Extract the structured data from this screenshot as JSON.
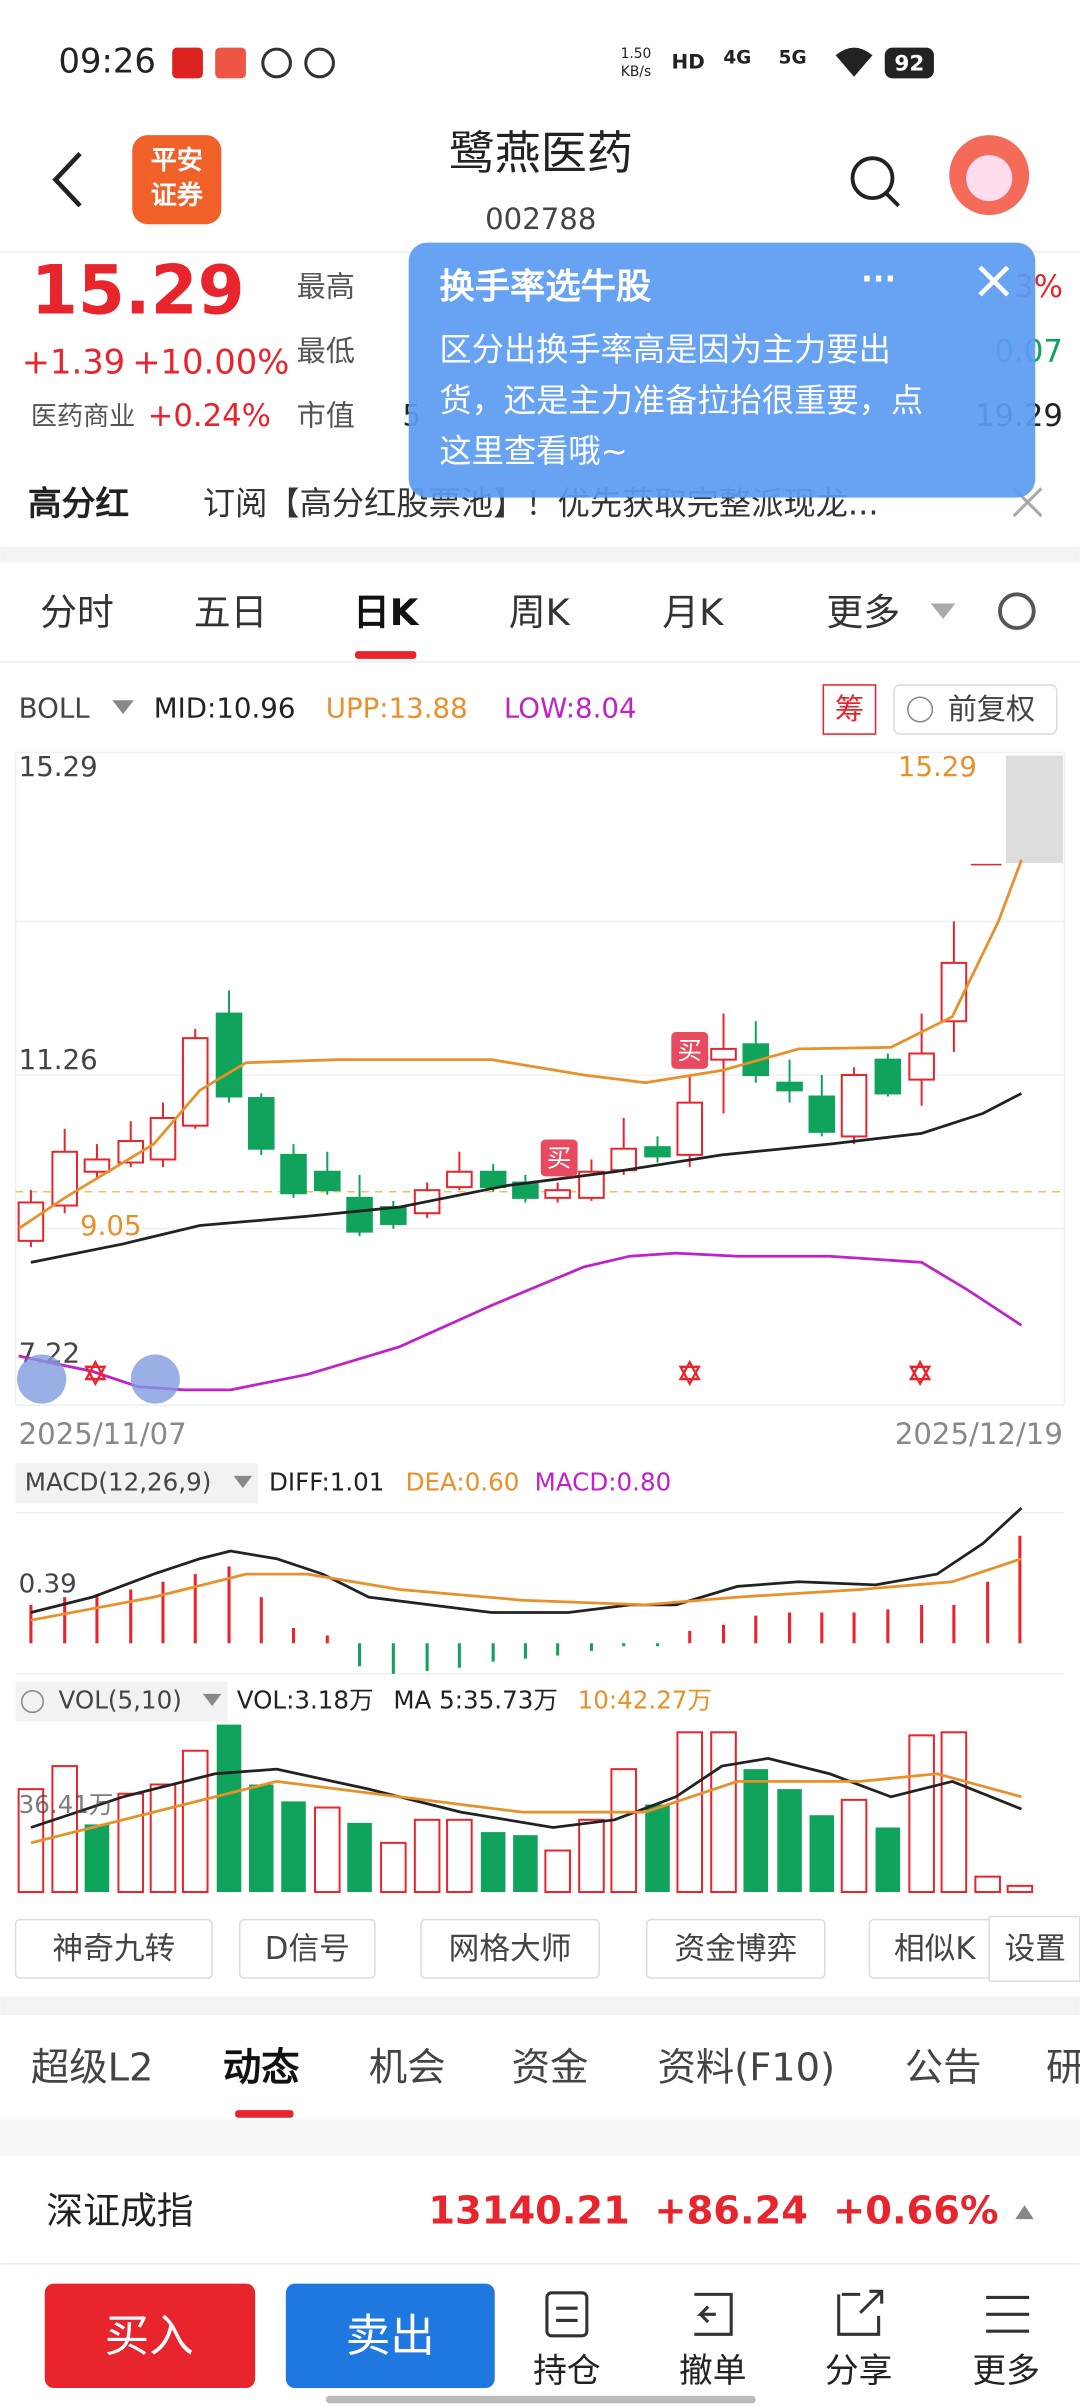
{
  "status": {
    "time": "09:26",
    "speed": "1.50",
    "speed_unit": "KB/s",
    "hd": "HD",
    "net1": "4G",
    "net2": "5G",
    "battery": "92"
  },
  "header": {
    "logo_line1": "平安",
    "logo_line2": "证券",
    "title": "鹭燕医药",
    "code": "002788"
  },
  "quote": {
    "price": "15.29",
    "change": "+1.39",
    "change_pct": "+10.00%",
    "sector": "医药商业",
    "sector_pct": "+0.24%",
    "label_high": "最高",
    "label_low": "最低",
    "label_cap": "市值",
    "cap_partial": "5",
    "right1": "3%",
    "right2": "0.07",
    "right3": "19.29"
  },
  "popup": {
    "title": "换手率选牛股",
    "more": "···",
    "line1": "区分出换手率高是因为主力要出",
    "line2": "货，还是主力准备拉抬很重要，点",
    "line3": "这里查看哦~"
  },
  "banner": {
    "tag": "高分红",
    "text": "订阅【高分红股票池】！优先获取完整派现龙..."
  },
  "tabs": [
    "分时",
    "五日",
    "日K",
    "周K",
    "月K",
    "更多"
  ],
  "boll": {
    "name": "BOLL",
    "mid": "MID:10.96",
    "upp": "UPP:13.88",
    "low": "LOW:8.04",
    "chip": "筹",
    "adjust": "前复权",
    "axis_top": "15.29",
    "axis_mid": "11.26",
    "axis_low": "7.22",
    "last_price": "15.29",
    "low_price": "9.05",
    "buy1": "买",
    "buy2": "买",
    "date_start": "2025/11/07",
    "date_end": "2025/12/19"
  },
  "macd": {
    "name": "MACD(12,26,9)",
    "diff": "DIFF:1.01",
    "dea": "DEA:0.60",
    "macd": "MACD:0.80",
    "axis": "0.39"
  },
  "vol": {
    "name": "VOL(5,10)",
    "vol": "VOL:3.18万",
    "ma5": "MA 5:35.73万",
    "ma10": "10:42.27万",
    "axis": "36.41万"
  },
  "tools": [
    "神奇九转",
    "D信号",
    "网格大师",
    "资金博弈",
    "相似K",
    "设置"
  ],
  "subtabs": [
    "超级L2",
    "动态",
    "机会",
    "资金",
    "资料(F10)",
    "公告",
    "研"
  ],
  "index": {
    "name": "深证成指",
    "value": "13140.21",
    "change": "+86.24",
    "pct": "+0.66%"
  },
  "bottom": {
    "buy": "买入",
    "sell": "卖出",
    "hold": "持仓",
    "cancel": "撤单",
    "share": "分享",
    "more": "更多"
  }
}
